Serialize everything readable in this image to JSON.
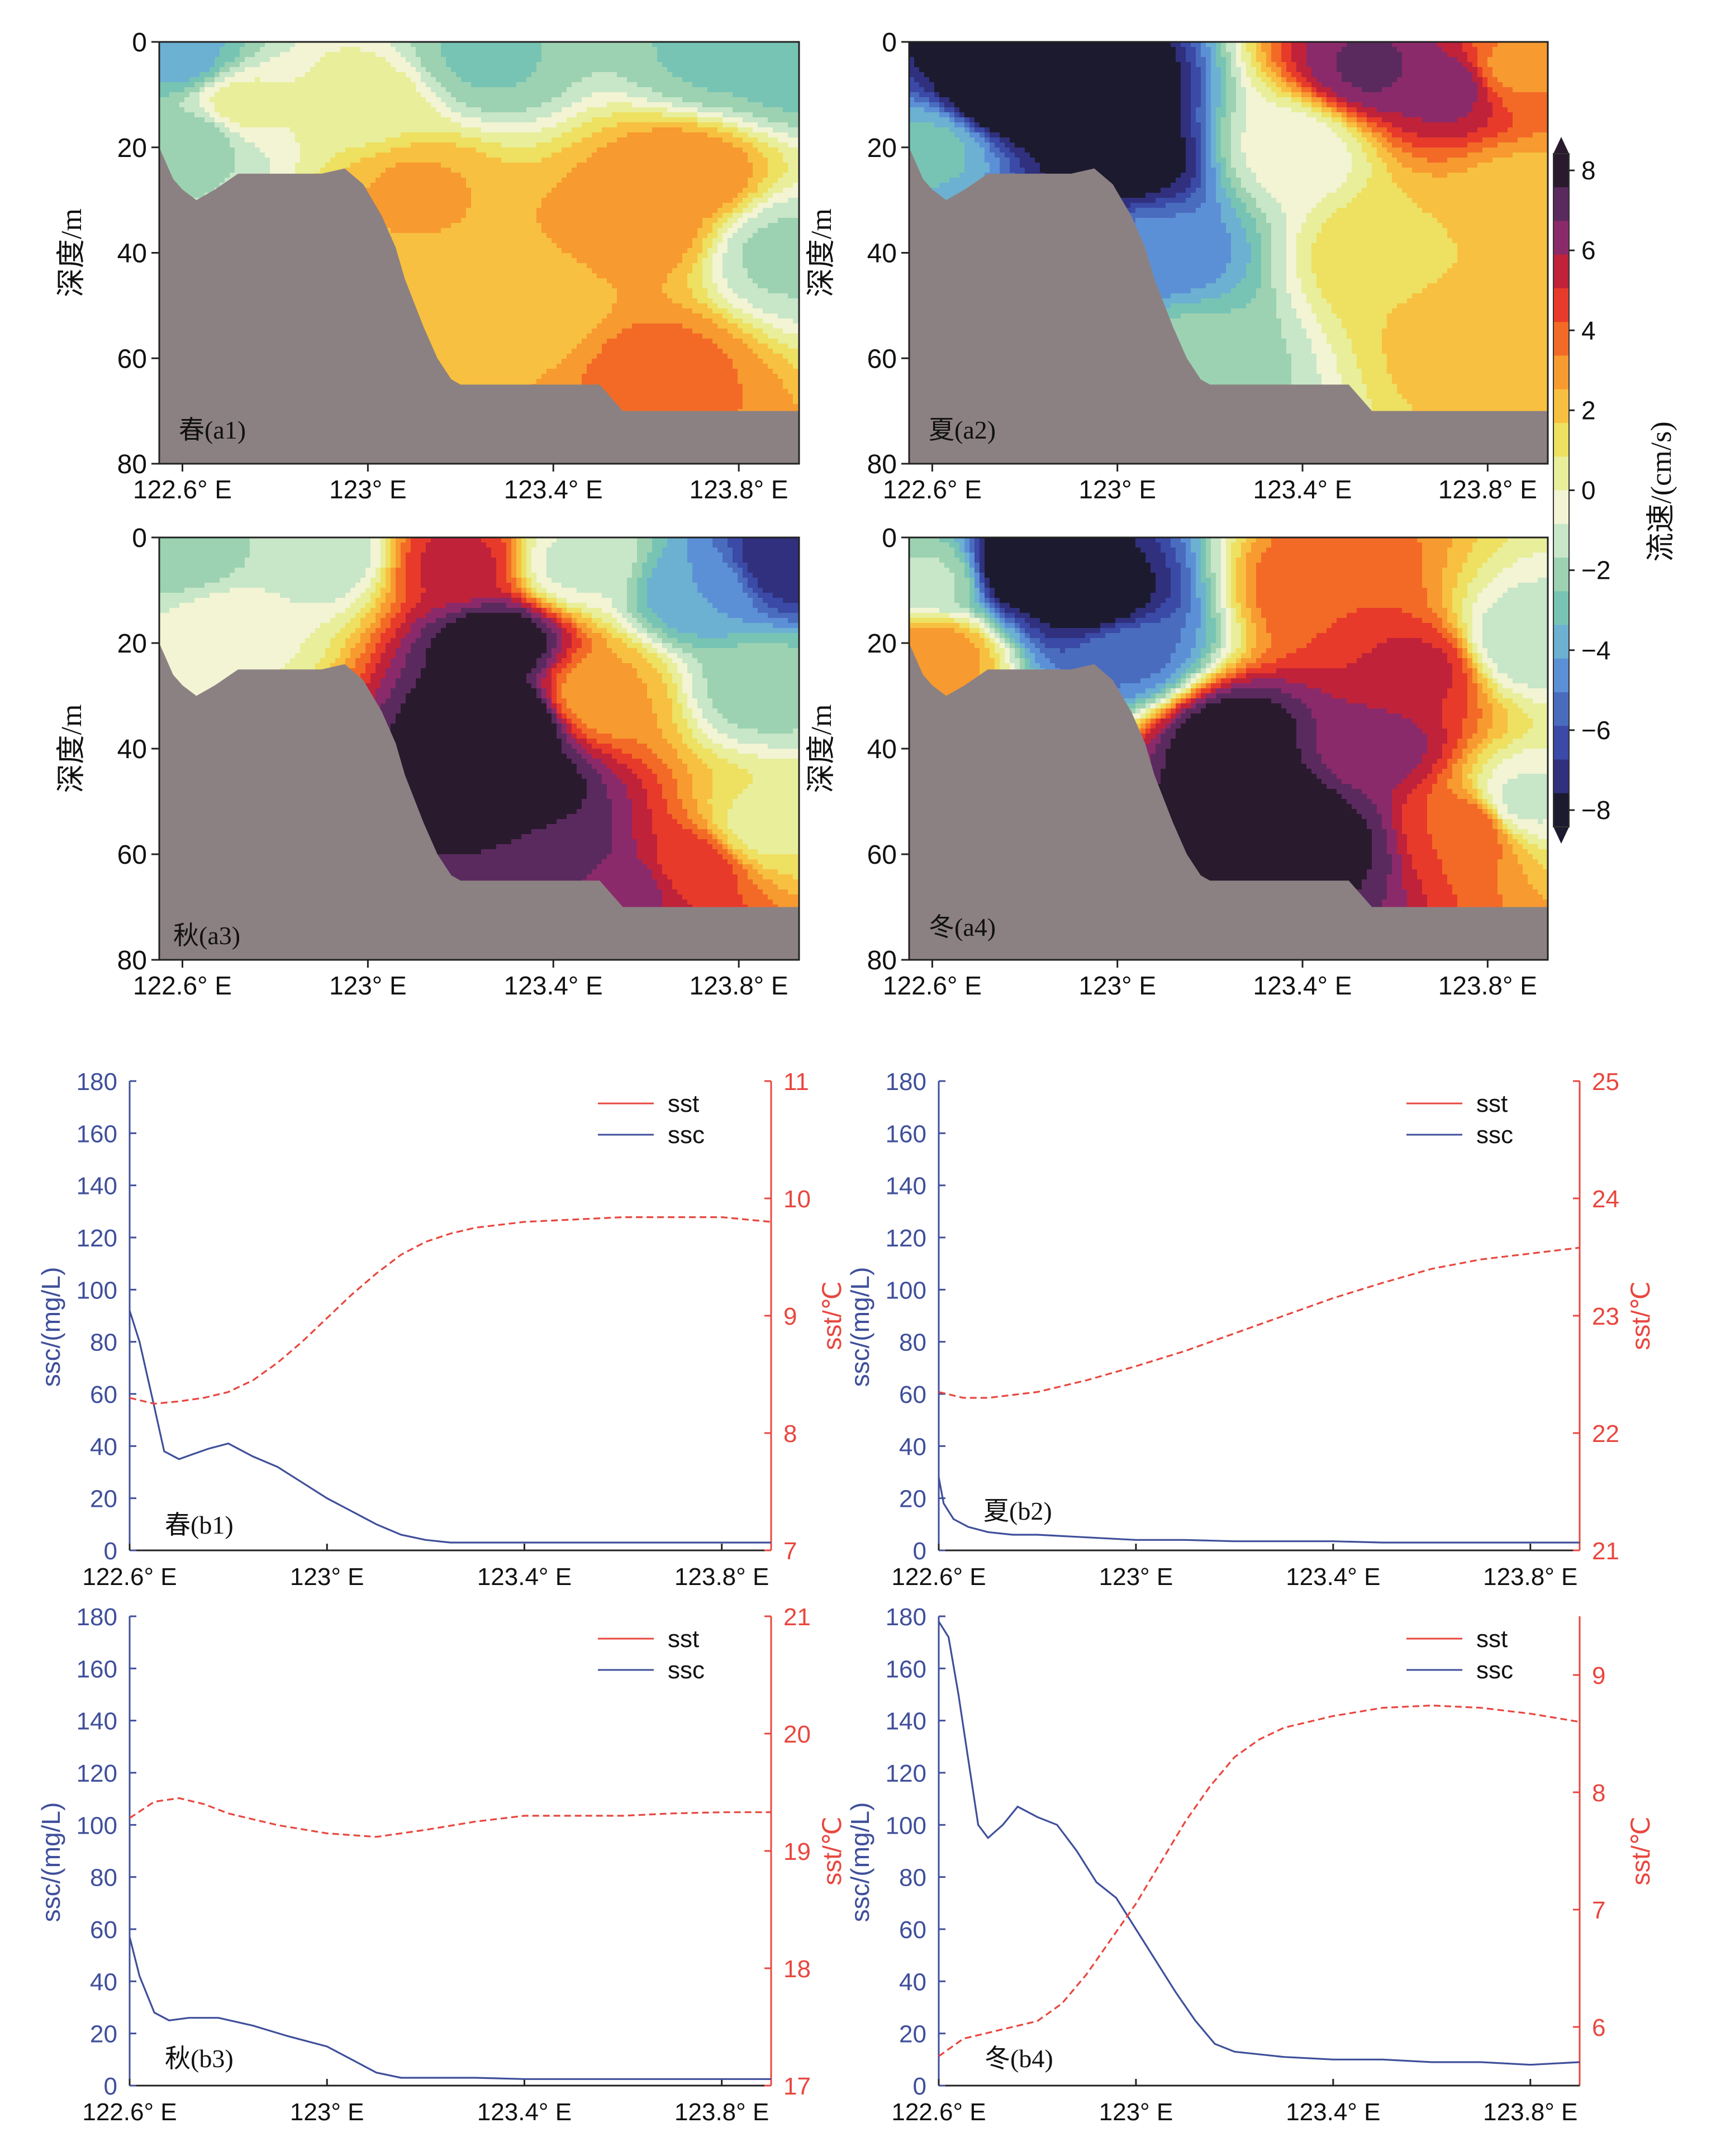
{
  "colorbar": {
    "label": "流速/(cm/s)",
    "ticks": [
      "8",
      "6",
      "4",
      "2",
      "0",
      "−2",
      "−4",
      "−6",
      "−8"
    ],
    "colors": [
      "#2a1a2e",
      "#5a2a5e",
      "#8b2a6a",
      "#c0223a",
      "#e83a2a",
      "#f36a26",
      "#f79a30",
      "#f8c040",
      "#eee060",
      "#e8ee9a",
      "#f2f4d4",
      "#c8e6c8",
      "#9cd2b2",
      "#78c4b4",
      "#6cb0d2",
      "#5c90d6",
      "#4a6cbe",
      "#3a4aa6",
      "#30307e",
      "#1c1a2e"
    ]
  },
  "chart_data": [
    {
      "id": "a1",
      "type": "heatmap",
      "panel_label": "春(a1)",
      "ylabel": "深度/m",
      "x_ticks": [
        "122.6° E",
        "123° E",
        "123.4° E",
        "123.8° E"
      ],
      "y_ticks": [
        "0",
        "20",
        "40",
        "60",
        "80"
      ],
      "xlim": [
        122.55,
        123.93
      ],
      "ylim": [
        0,
        80
      ],
      "zlim": [
        -8,
        8
      ],
      "value_unit": "cm/s",
      "blobs": [
        {
          "lon": 122.6,
          "depth": 3,
          "value": -3.5
        },
        {
          "lon": 122.63,
          "depth": 18,
          "value": -2
        },
        {
          "lon": 123.25,
          "depth": 3,
          "value": -2.5
        },
        {
          "lon": 123.75,
          "depth": 3,
          "value": -2.5
        },
        {
          "lon": 123.9,
          "depth": 3,
          "value": -3
        },
        {
          "lon": 122.72,
          "depth": 12,
          "value": 0.3
        },
        {
          "lon": 123.0,
          "depth": 12,
          "value": 0.5
        },
        {
          "lon": 123.1,
          "depth": 28,
          "value": 2.5
        },
        {
          "lon": 123.58,
          "depth": 35,
          "value": 3
        },
        {
          "lon": 123.68,
          "depth": 25,
          "value": 3.2
        },
        {
          "lon": 123.62,
          "depth": 62,
          "value": 3.5
        },
        {
          "lon": 123.35,
          "depth": 50,
          "value": 1.8
        },
        {
          "lon": 123.9,
          "depth": 40,
          "value": -1.8
        }
      ]
    },
    {
      "id": "a2",
      "type": "heatmap",
      "panel_label": "夏(a2)",
      "ylabel": "深度/m",
      "x_ticks": [
        "122.6° E",
        "123° E",
        "123.4° E",
        "123.8° E"
      ],
      "y_ticks": [
        "0",
        "20",
        "40",
        "60",
        "80"
      ],
      "xlim": [
        122.55,
        123.93
      ],
      "ylim": [
        0,
        80
      ],
      "zlim": [
        -8,
        8
      ],
      "value_unit": "cm/s",
      "blobs": [
        {
          "lon": 122.75,
          "depth": 10,
          "value": -9
        },
        {
          "lon": 122.95,
          "depth": 10,
          "value": -9
        },
        {
          "lon": 123.02,
          "depth": 22,
          "value": -8
        },
        {
          "lon": 122.6,
          "depth": 20,
          "value": -3
        },
        {
          "lon": 123.08,
          "depth": 40,
          "value": -4.5
        },
        {
          "lon": 123.15,
          "depth": 60,
          "value": -2
        },
        {
          "lon": 123.55,
          "depth": 5,
          "value": 6.5
        },
        {
          "lon": 123.72,
          "depth": 8,
          "value": 6
        },
        {
          "lon": 123.85,
          "depth": 5,
          "value": 3
        },
        {
          "lon": 123.38,
          "depth": 20,
          "value": -0.5
        },
        {
          "lon": 123.6,
          "depth": 40,
          "value": 1.5
        },
        {
          "lon": 123.8,
          "depth": 55,
          "value": 2.2
        },
        {
          "lon": 123.88,
          "depth": 30,
          "value": 2
        }
      ]
    },
    {
      "id": "a3",
      "type": "heatmap",
      "panel_label": "秋(a3)",
      "ylabel": "深度/m",
      "x_ticks": [
        "122.6° E",
        "123° E",
        "123.4° E",
        "123.8° E"
      ],
      "y_ticks": [
        "0",
        "20",
        "40",
        "60",
        "80"
      ],
      "xlim": [
        122.55,
        123.93
      ],
      "ylim": [
        0,
        80
      ],
      "zlim": [
        -8,
        8
      ],
      "value_unit": "cm/s",
      "blobs": [
        {
          "lon": 123.28,
          "depth": 20,
          "value": 8
        },
        {
          "lon": 123.3,
          "depth": 35,
          "value": 9
        },
        {
          "lon": 123.32,
          "depth": 48,
          "value": 8
        },
        {
          "lon": 123.42,
          "depth": 60,
          "value": 7
        },
        {
          "lon": 123.2,
          "depth": 5,
          "value": 5
        },
        {
          "lon": 123.55,
          "depth": 66,
          "value": 6
        },
        {
          "lon": 123.7,
          "depth": 62,
          "value": 4.5
        },
        {
          "lon": 123.5,
          "depth": 30,
          "value": 2.5
        },
        {
          "lon": 122.6,
          "depth": 3,
          "value": -2
        },
        {
          "lon": 122.9,
          "depth": 3,
          "value": -1.5
        },
        {
          "lon": 122.7,
          "depth": 18,
          "value": -0.2
        },
        {
          "lon": 123.45,
          "depth": 5,
          "value": -1
        },
        {
          "lon": 123.72,
          "depth": 10,
          "value": -4
        },
        {
          "lon": 123.9,
          "depth": 5,
          "value": -7
        },
        {
          "lon": 123.85,
          "depth": 28,
          "value": -2
        },
        {
          "lon": 123.85,
          "depth": 55,
          "value": 0.5
        }
      ]
    },
    {
      "id": "a4",
      "type": "heatmap",
      "panel_label": "冬(a4)",
      "ylabel": "深度/m",
      "x_ticks": [
        "122.6° E",
        "123° E",
        "123.4° E",
        "123.8° E"
      ],
      "y_ticks": [
        "0",
        "20",
        "40",
        "60",
        "80"
      ],
      "xlim": [
        122.55,
        123.93
      ],
      "ylim": [
        0,
        80
      ],
      "zlim": [
        -8,
        8
      ],
      "value_unit": "cm/s",
      "blobs": [
        {
          "lon": 122.8,
          "depth": 6,
          "value": -9
        },
        {
          "lon": 122.95,
          "depth": 12,
          "value": -8
        },
        {
          "lon": 123.02,
          "depth": 22,
          "value": -5
        },
        {
          "lon": 122.6,
          "depth": 8,
          "value": -1.5
        },
        {
          "lon": 122.6,
          "depth": 22,
          "value": 3
        },
        {
          "lon": 123.32,
          "depth": 52,
          "value": 9
        },
        {
          "lon": 123.25,
          "depth": 38,
          "value": 8
        },
        {
          "lon": 123.45,
          "depth": 58,
          "value": 7.5
        },
        {
          "lon": 123.55,
          "depth": 40,
          "value": 6
        },
        {
          "lon": 123.65,
          "depth": 25,
          "value": 5
        },
        {
          "lon": 123.45,
          "depth": 10,
          "value": 4
        },
        {
          "lon": 123.75,
          "depth": 55,
          "value": 4
        },
        {
          "lon": 123.88,
          "depth": 20,
          "value": -1.5
        },
        {
          "lon": 123.88,
          "depth": 50,
          "value": -1
        }
      ]
    },
    {
      "id": "b1",
      "type": "line",
      "panel_label": "春(b1)",
      "ylabel": "ssc/(mg/L)",
      "y2label": "sst/℃",
      "x_ticks": [
        "122.6° E",
        "123° E",
        "123.4° E",
        "123.8° E"
      ],
      "xlim": [
        122.6,
        123.9
      ],
      "ylim": [
        0,
        180
      ],
      "y2lim": [
        7,
        11
      ],
      "y_ticks": [
        "0",
        "20",
        "40",
        "60",
        "80",
        "100",
        "120",
        "140",
        "160",
        "180"
      ],
      "y2_ticks": [
        "7",
        "8",
        "9",
        "10",
        "11"
      ],
      "legend": [
        "sst",
        "ssc"
      ],
      "series": [
        {
          "name": "ssc",
          "axis": "left",
          "x": [
            122.6,
            122.62,
            122.65,
            122.67,
            122.7,
            122.73,
            122.76,
            122.8,
            122.85,
            122.9,
            122.95,
            123.0,
            123.05,
            123.1,
            123.15,
            123.2,
            123.25,
            123.3,
            123.4,
            123.5,
            123.6,
            123.7,
            123.8,
            123.9
          ],
          "y": [
            92,
            80,
            55,
            38,
            35,
            37,
            39,
            41,
            36,
            32,
            26,
            20,
            15,
            10,
            6,
            4,
            3,
            3,
            3,
            3,
            3,
            3,
            3,
            3
          ]
        },
        {
          "name": "sst",
          "axis": "right",
          "x": [
            122.6,
            122.65,
            122.7,
            122.75,
            122.8,
            122.85,
            122.9,
            122.95,
            123.0,
            123.05,
            123.1,
            123.15,
            123.2,
            123.25,
            123.3,
            123.4,
            123.5,
            123.6,
            123.7,
            123.8,
            123.9
          ],
          "y": [
            8.3,
            8.25,
            8.27,
            8.3,
            8.35,
            8.45,
            8.6,
            8.78,
            8.98,
            9.18,
            9.36,
            9.52,
            9.63,
            9.7,
            9.75,
            9.8,
            9.82,
            9.84,
            9.84,
            9.84,
            9.8
          ]
        }
      ]
    },
    {
      "id": "b2",
      "type": "line",
      "panel_label": "夏(b2)",
      "ylabel": "ssc/(mg/L)",
      "y2label": "sst/℃",
      "x_ticks": [
        "122.6° E",
        "123° E",
        "123.4° E",
        "123.8° E"
      ],
      "xlim": [
        122.6,
        123.9
      ],
      "ylim": [
        0,
        180
      ],
      "y2lim": [
        21,
        25
      ],
      "y_ticks": [
        "0",
        "20",
        "40",
        "60",
        "80",
        "100",
        "120",
        "140",
        "160",
        "180"
      ],
      "y2_ticks": [
        "21",
        "22",
        "23",
        "24",
        "25"
      ],
      "legend": [
        "sst",
        "ssc"
      ],
      "series": [
        {
          "name": "ssc",
          "axis": "left",
          "x": [
            122.6,
            122.61,
            122.63,
            122.66,
            122.7,
            122.75,
            122.8,
            122.9,
            123.0,
            123.1,
            123.2,
            123.3,
            123.4,
            123.5,
            123.6,
            123.7,
            123.8,
            123.9
          ],
          "y": [
            28,
            18,
            12,
            9,
            7,
            6,
            6,
            5,
            4,
            4,
            3.5,
            3.5,
            3.5,
            3,
            3,
            3,
            3,
            3
          ]
        },
        {
          "name": "sst",
          "axis": "right",
          "x": [
            122.6,
            122.65,
            122.7,
            122.8,
            122.9,
            123.0,
            123.1,
            123.2,
            123.3,
            123.4,
            123.5,
            123.6,
            123.7,
            123.8,
            123.9
          ],
          "y": [
            22.35,
            22.3,
            22.3,
            22.35,
            22.45,
            22.57,
            22.7,
            22.85,
            23.0,
            23.15,
            23.28,
            23.4,
            23.48,
            23.53,
            23.58
          ]
        }
      ]
    },
    {
      "id": "b3",
      "type": "line",
      "panel_label": "秋(b3)",
      "ylabel": "ssc/(mg/L)",
      "y2label": "sst/℃",
      "x_ticks": [
        "122.6° E",
        "123° E",
        "123.4° E",
        "123.8° E"
      ],
      "xlim": [
        122.6,
        123.9
      ],
      "ylim": [
        0,
        180
      ],
      "y2lim": [
        17,
        21
      ],
      "y_ticks": [
        "0",
        "20",
        "40",
        "60",
        "80",
        "100",
        "120",
        "140",
        "160",
        "180"
      ],
      "y2_ticks": [
        "17",
        "18",
        "19",
        "20",
        "21"
      ],
      "legend": [
        "sst",
        "ssc"
      ],
      "series": [
        {
          "name": "ssc",
          "axis": "left",
          "x": [
            122.6,
            122.62,
            122.65,
            122.68,
            122.72,
            122.78,
            122.85,
            122.92,
            123.0,
            123.05,
            123.1,
            123.15,
            123.2,
            123.3,
            123.4,
            123.5,
            123.6,
            123.7,
            123.8,
            123.9
          ],
          "y": [
            57,
            42,
            28,
            25,
            26,
            26,
            23,
            19,
            15,
            10,
            5,
            3,
            3,
            3,
            2.5,
            2.5,
            2.5,
            2.5,
            2.5,
            2.5
          ]
        },
        {
          "name": "sst",
          "axis": "right",
          "x": [
            122.6,
            122.65,
            122.7,
            122.75,
            122.8,
            122.9,
            123.0,
            123.1,
            123.2,
            123.3,
            123.4,
            123.5,
            123.6,
            123.7,
            123.8,
            123.9
          ],
          "y": [
            19.28,
            19.42,
            19.45,
            19.4,
            19.32,
            19.22,
            19.15,
            19.12,
            19.18,
            19.25,
            19.3,
            19.3,
            19.3,
            19.32,
            19.33,
            19.33
          ]
        }
      ]
    },
    {
      "id": "b4",
      "type": "line",
      "panel_label": "冬(b4)",
      "ylabel": "ssc/(mg/L)",
      "y2label": "sst/℃",
      "x_ticks": [
        "122.6° E",
        "123° E",
        "123.4° E",
        "123.8° E"
      ],
      "xlim": [
        122.6,
        123.9
      ],
      "ylim": [
        0,
        180
      ],
      "y2lim": [
        5.5,
        9.5
      ],
      "y_ticks": [
        "0",
        "20",
        "40",
        "60",
        "80",
        "100",
        "120",
        "140",
        "160",
        "180"
      ],
      "y2_ticks": [
        "6",
        "7",
        "8",
        "9"
      ],
      "legend": [
        "sst",
        "ssc"
      ],
      "series": [
        {
          "name": "ssc",
          "axis": "left",
          "x": [
            122.6,
            122.62,
            122.64,
            122.66,
            122.68,
            122.7,
            122.73,
            122.76,
            122.8,
            122.84,
            122.88,
            122.92,
            122.96,
            123.0,
            123.04,
            123.08,
            123.12,
            123.16,
            123.2,
            123.3,
            123.4,
            123.5,
            123.6,
            123.7,
            123.8,
            123.9
          ],
          "y": [
            178,
            172,
            150,
            125,
            100,
            95,
            100,
            107,
            103,
            100,
            90,
            78,
            72,
            60,
            48,
            36,
            25,
            16,
            13,
            11,
            10,
            10,
            9,
            9,
            8,
            9
          ]
        },
        {
          "name": "sst",
          "axis": "right",
          "x": [
            122.6,
            122.65,
            122.7,
            122.75,
            122.8,
            122.85,
            122.9,
            122.95,
            123.0,
            123.05,
            123.1,
            123.15,
            123.2,
            123.25,
            123.3,
            123.4,
            123.5,
            123.6,
            123.7,
            123.8,
            123.9
          ],
          "y": [
            5.75,
            5.9,
            5.95,
            6.0,
            6.05,
            6.2,
            6.45,
            6.75,
            7.05,
            7.4,
            7.75,
            8.05,
            8.3,
            8.45,
            8.55,
            8.65,
            8.72,
            8.74,
            8.72,
            8.67,
            8.6
          ]
        }
      ]
    }
  ]
}
